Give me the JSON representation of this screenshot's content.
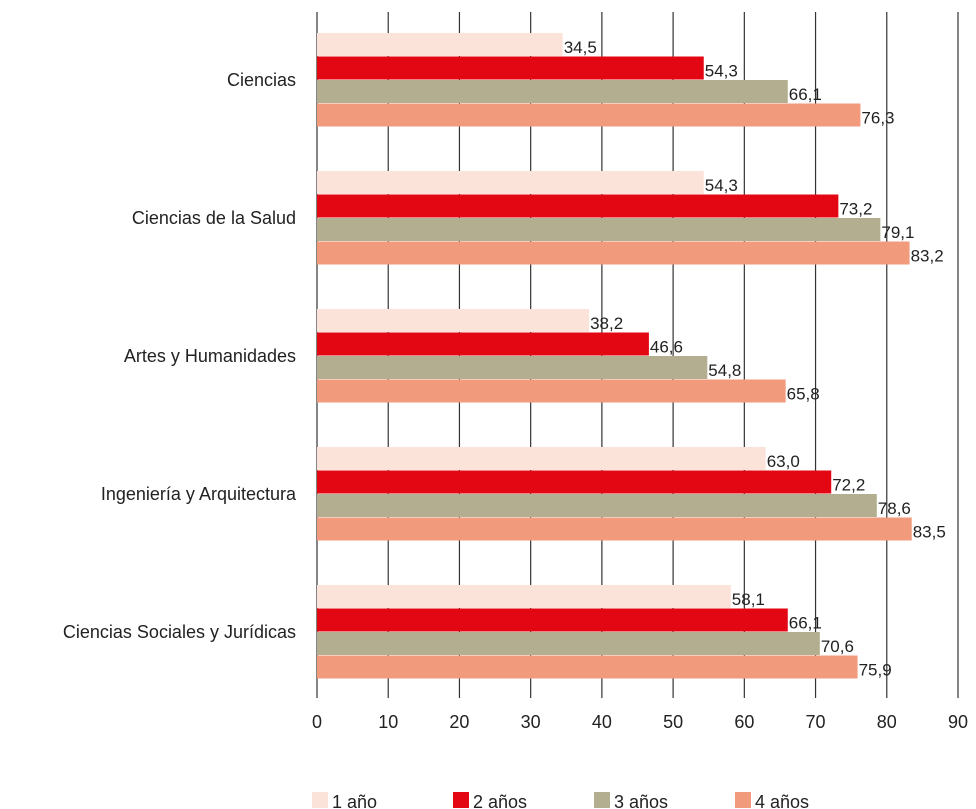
{
  "chart_data": {
    "type": "bar",
    "orientation": "horizontal",
    "title": "",
    "xlabel": "",
    "ylabel": "",
    "xlim": [
      0,
      90
    ],
    "x_ticks": [
      0,
      10,
      20,
      30,
      40,
      50,
      60,
      70,
      80,
      90
    ],
    "grid": "vertical",
    "legend_position": "bottom",
    "categories": [
      "Ciencias",
      "Ciencias de la Salud",
      "Artes y Humanidades",
      "Ingeniería y Arquitectura",
      "Ciencias Sociales y Jurídicas"
    ],
    "series": [
      {
        "name": "1 año",
        "color": "#fce3da",
        "values": [
          34.5,
          54.3,
          38.2,
          63.0,
          58.1
        ],
        "labels": [
          "34,5",
          "54,3",
          "38,2",
          "63,0",
          "58,1"
        ]
      },
      {
        "name": "2 años",
        "color": "#e30613",
        "values": [
          54.3,
          73.2,
          46.6,
          72.2,
          66.1
        ],
        "labels": [
          "54,3",
          "73,2",
          "46,6",
          "72,2",
          "66,1"
        ]
      },
      {
        "name": "3 años",
        "color": "#b3ae8f",
        "values": [
          66.1,
          79.1,
          54.8,
          78.6,
          70.6
        ],
        "labels": [
          "66,1",
          "79,1",
          "54,8",
          "78,6",
          "70,6"
        ]
      },
      {
        "name": "4 años",
        "color": "#f29a7c",
        "values": [
          76.3,
          83.2,
          65.8,
          83.5,
          75.9
        ],
        "labels": [
          "76,3",
          "83,2",
          "65,8",
          "83,5",
          "75,9"
        ]
      }
    ]
  }
}
